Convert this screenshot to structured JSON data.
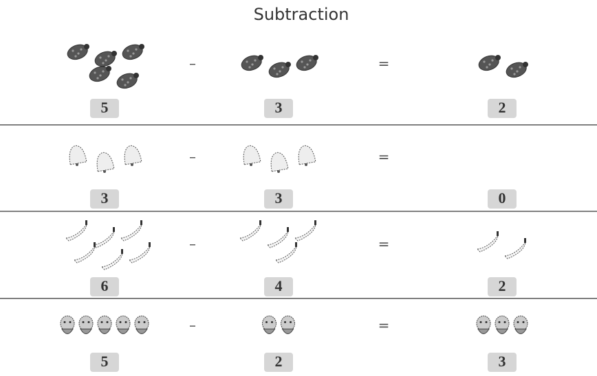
{
  "title": "Subtraction",
  "minus": "–",
  "equals": "=",
  "rows": [
    [
      5,
      3,
      2
    ],
    [
      3,
      3,
      0
    ],
    [
      6,
      4,
      2
    ],
    [
      5,
      2,
      3
    ]
  ]
}
